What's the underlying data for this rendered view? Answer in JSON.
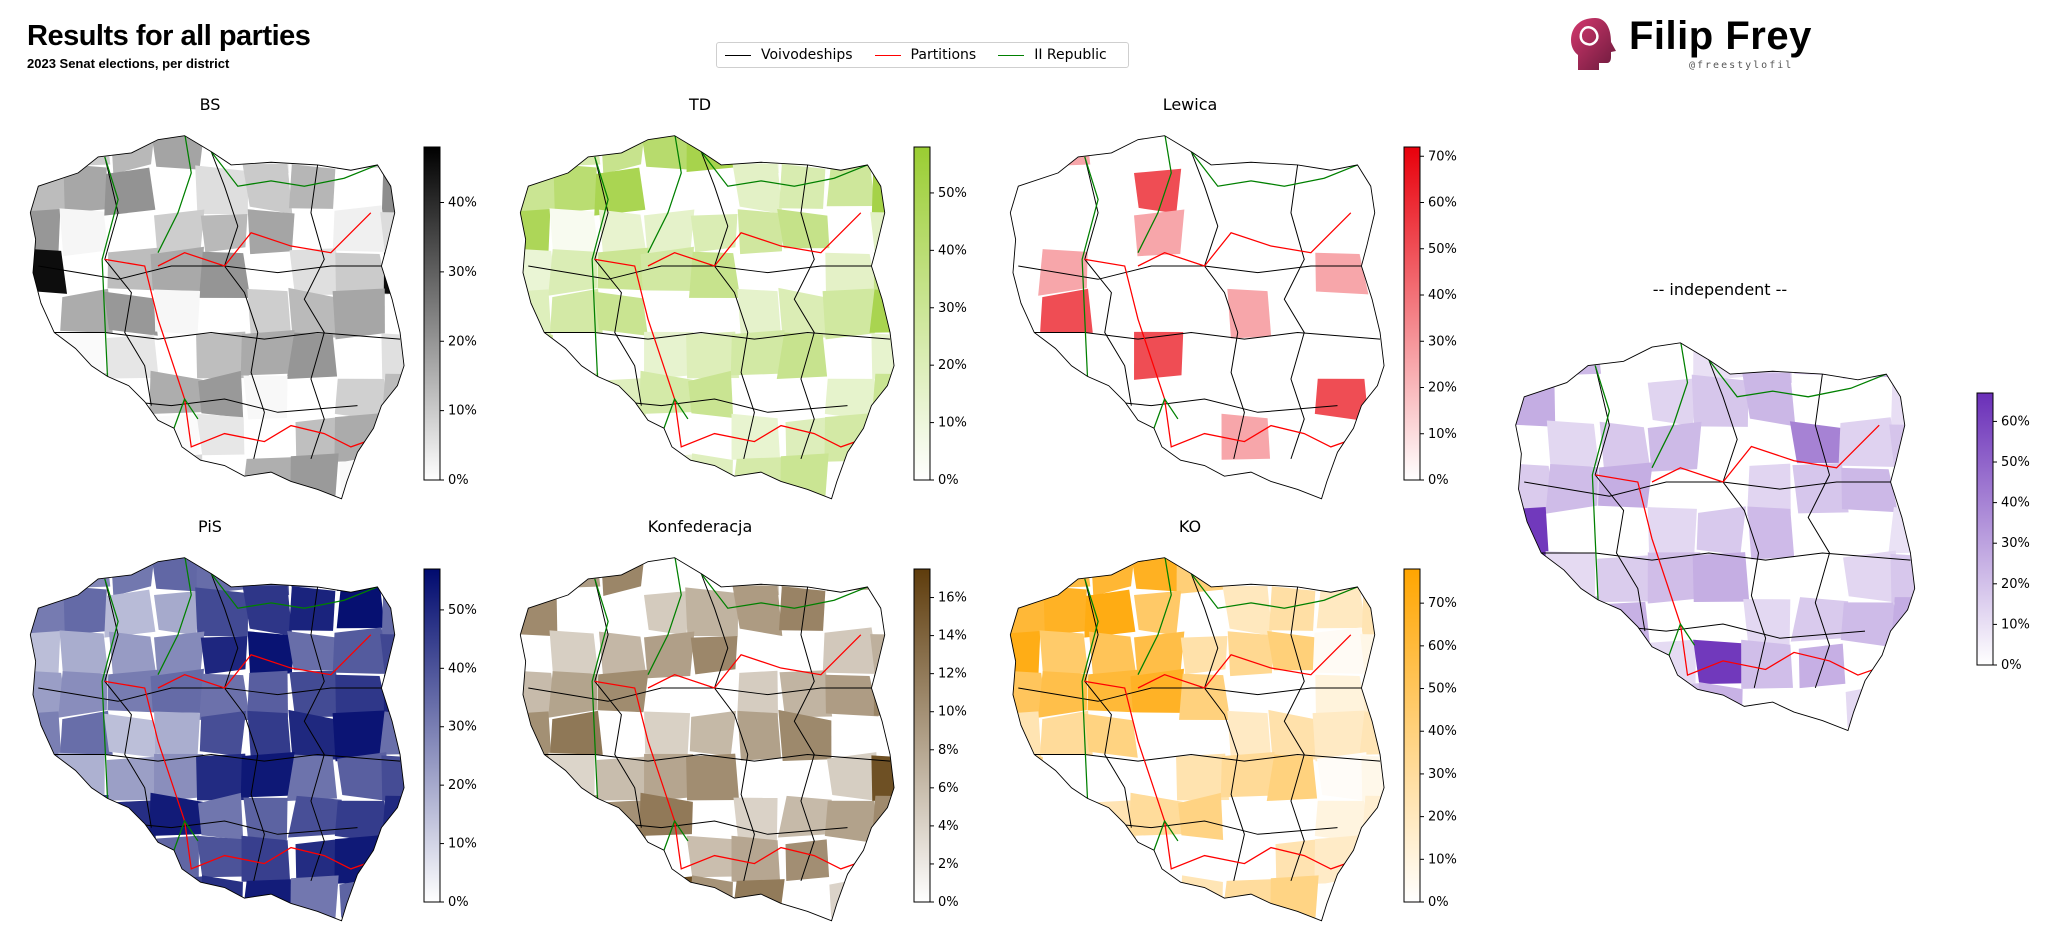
{
  "header": {
    "title": "Results for all parties",
    "subtitle": "2023 Senat elections, per  district"
  },
  "legend": [
    {
      "label": "Voivodeships",
      "color": "#000000"
    },
    {
      "label": "Partitions",
      "color": "#ff0000"
    },
    {
      "label": "II Republic",
      "color": "#008000"
    }
  ],
  "brand": {
    "name": "Filip Frey",
    "handle": "@freestylofil",
    "logo": "head-profile-logo"
  },
  "panels": [
    {
      "id": "bs",
      "title": "BS",
      "color_low": "#ffffff",
      "color_high": "#000000",
      "ticks": [
        "0%",
        "10%",
        "20%",
        "30%",
        "40%"
      ],
      "max_value": 48
    },
    {
      "id": "td",
      "title": "TD",
      "color_low": "#ffffff",
      "color_high": "#9acd32",
      "ticks": [
        "0%",
        "10%",
        "20%",
        "30%",
        "40%",
        "50%"
      ],
      "max_value": 58
    },
    {
      "id": "lewica",
      "title": "Lewica",
      "color_low": "#ffffff",
      "color_high": "#e8000b",
      "ticks": [
        "0%",
        "10%",
        "20%",
        "30%",
        "40%",
        "50%",
        "60%",
        "70%"
      ],
      "max_value": 72
    },
    {
      "id": "pis",
      "title": "PiS",
      "color_low": "#ffffff",
      "color_high": "#000a6e",
      "ticks": [
        "0%",
        "10%",
        "20%",
        "30%",
        "40%",
        "50%"
      ],
      "max_value": 57
    },
    {
      "id": "konf",
      "title": "Konfederacja",
      "color_low": "#ffffff",
      "color_high": "#5e3c0c",
      "ticks": [
        "0%",
        "2%",
        "4%",
        "6%",
        "8%",
        "10%",
        "12%",
        "14%",
        "16%"
      ],
      "max_value": 17.5
    },
    {
      "id": "ko",
      "title": "KO",
      "color_low": "#ffffff",
      "color_high": "#ffa500",
      "ticks": [
        "0%",
        "10%",
        "20%",
        "30%",
        "40%",
        "50%",
        "60%",
        "70%"
      ],
      "max_value": 78
    },
    {
      "id": "indep",
      "title": "-- independent --",
      "color_low": "#ffffff",
      "color_high": "#6a2fb8",
      "ticks": [
        "0%",
        "10%",
        "20%",
        "30%",
        "40%",
        "50%",
        "60%"
      ],
      "max_value": 67
    }
  ]
}
